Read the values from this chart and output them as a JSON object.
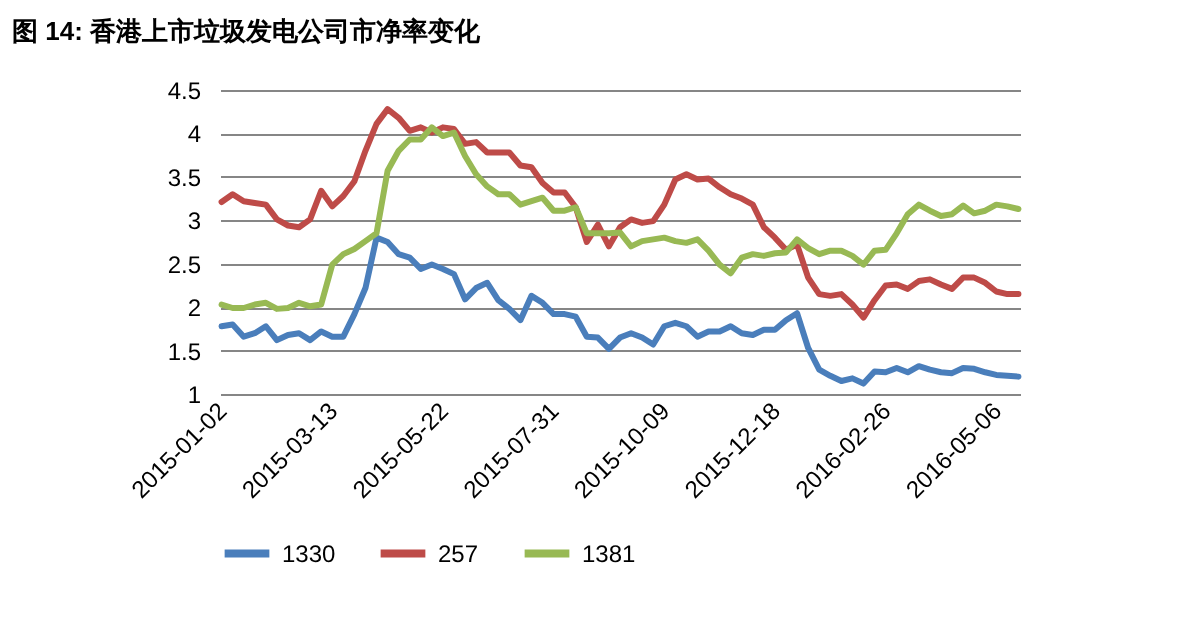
{
  "chart_data": {
    "type": "line",
    "title": "图 14: 香港上市垃圾发电公司市净率变化",
    "x": [
      "2015-01-02",
      "2015-01-09",
      "2015-01-16",
      "2015-01-23",
      "2015-01-30",
      "2015-02-06",
      "2015-02-13",
      "2015-02-20",
      "2015-02-27",
      "2015-03-06",
      "2015-03-13",
      "2015-03-20",
      "2015-03-27",
      "2015-04-03",
      "2015-04-10",
      "2015-04-17",
      "2015-04-24",
      "2015-05-01",
      "2015-05-08",
      "2015-05-15",
      "2015-05-22",
      "2015-05-29",
      "2015-06-05",
      "2015-06-12",
      "2015-06-19",
      "2015-06-26",
      "2015-07-03",
      "2015-07-10",
      "2015-07-17",
      "2015-07-24",
      "2015-07-31",
      "2015-08-07",
      "2015-08-14",
      "2015-08-21",
      "2015-08-28",
      "2015-09-04",
      "2015-09-11",
      "2015-09-18",
      "2015-09-25",
      "2015-10-02",
      "2015-10-09",
      "2015-10-16",
      "2015-10-23",
      "2015-10-30",
      "2015-11-06",
      "2015-11-13",
      "2015-11-20",
      "2015-11-27",
      "2015-12-04",
      "2015-12-11",
      "2015-12-18",
      "2015-12-25",
      "2016-01-01",
      "2016-01-08",
      "2016-01-15",
      "2016-01-22",
      "2016-01-29",
      "2016-02-05",
      "2016-02-12",
      "2016-02-19",
      "2016-02-26",
      "2016-03-04",
      "2016-03-11",
      "2016-03-18",
      "2016-03-25",
      "2016-04-01",
      "2016-04-08",
      "2016-04-15",
      "2016-04-22",
      "2016-04-29",
      "2016-05-06",
      "2016-05-13",
      "2016-05-20"
    ],
    "xlim": [
      "2015-01-01",
      "2016-05-21"
    ],
    "xticks": [
      "2015-01-02",
      "2015-03-13",
      "2015-05-22",
      "2015-07-31",
      "2015-10-09",
      "2015-12-18",
      "2016-02-26",
      "2016-05-06"
    ],
    "ylim": [
      1,
      4.5
    ],
    "yticks": [
      1,
      1.5,
      2,
      2.5,
      3,
      3.5,
      4,
      4.5
    ],
    "grid": "y",
    "legend": "bottom",
    "series": [
      {
        "name": "1330",
        "color": "#4a7ebb",
        "values": [
          1.78,
          1.8,
          1.66,
          1.7,
          1.78,
          1.62,
          1.68,
          1.7,
          1.62,
          1.72,
          1.66,
          1.66,
          1.92,
          2.22,
          2.8,
          2.75,
          2.61,
          2.57,
          2.44,
          2.49,
          2.44,
          2.38,
          2.09,
          2.22,
          2.28,
          2.08,
          1.98,
          1.85,
          2.13,
          2.05,
          1.92,
          1.92,
          1.89,
          1.66,
          1.65,
          1.52,
          1.65,
          1.7,
          1.65,
          1.57,
          1.78,
          1.82,
          1.78,
          1.66,
          1.72,
          1.72,
          1.78,
          1.7,
          1.68,
          1.74,
          1.74,
          1.85,
          1.93,
          1.53,
          1.28,
          1.21,
          1.15,
          1.18,
          1.12,
          1.26,
          1.25,
          1.3,
          1.25,
          1.32,
          1.28,
          1.25,
          1.24,
          1.3,
          1.29,
          1.25,
          1.22,
          1.21,
          1.2
        ]
      },
      {
        "name": "257",
        "color": "#be4b48",
        "values": [
          3.21,
          3.3,
          3.22,
          3.2,
          3.18,
          3.01,
          2.94,
          2.92,
          3.01,
          3.34,
          3.16,
          3.28,
          3.45,
          3.8,
          4.11,
          4.28,
          4.18,
          4.03,
          4.07,
          4.01,
          4.07,
          4.05,
          3.88,
          3.9,
          3.78,
          3.78,
          3.78,
          3.63,
          3.61,
          3.43,
          3.32,
          3.32,
          3.15,
          2.75,
          2.95,
          2.7,
          2.92,
          3.01,
          2.97,
          2.99,
          3.18,
          3.47,
          3.53,
          3.47,
          3.48,
          3.38,
          3.3,
          3.25,
          3.18,
          2.92,
          2.8,
          2.66,
          2.72,
          2.34,
          2.15,
          2.13,
          2.15,
          2.03,
          1.88,
          2.08,
          2.25,
          2.26,
          2.21,
          2.3,
          2.32,
          2.26,
          2.21,
          2.34,
          2.34,
          2.28,
          2.18,
          2.15,
          2.15
        ]
      },
      {
        "name": "1381",
        "color": "#98b954",
        "values": [
          2.03,
          1.99,
          1.99,
          2.03,
          2.05,
          1.98,
          1.99,
          2.05,
          2.01,
          2.03,
          2.49,
          2.61,
          2.67,
          2.76,
          2.85,
          3.57,
          3.8,
          3.93,
          3.93,
          4.07,
          3.97,
          4.01,
          3.74,
          3.53,
          3.39,
          3.3,
          3.3,
          3.18,
          3.22,
          3.26,
          3.11,
          3.11,
          3.15,
          2.85,
          2.85,
          2.85,
          2.86,
          2.7,
          2.76,
          2.78,
          2.8,
          2.76,
          2.74,
          2.78,
          2.65,
          2.49,
          2.39,
          2.57,
          2.61,
          2.59,
          2.62,
          2.63,
          2.78,
          2.68,
          2.61,
          2.65,
          2.65,
          2.59,
          2.49,
          2.65,
          2.66,
          2.85,
          3.07,
          3.18,
          3.11,
          3.05,
          3.07,
          3.17,
          3.08,
          3.11,
          3.18,
          3.16,
          3.13
        ]
      }
    ]
  }
}
